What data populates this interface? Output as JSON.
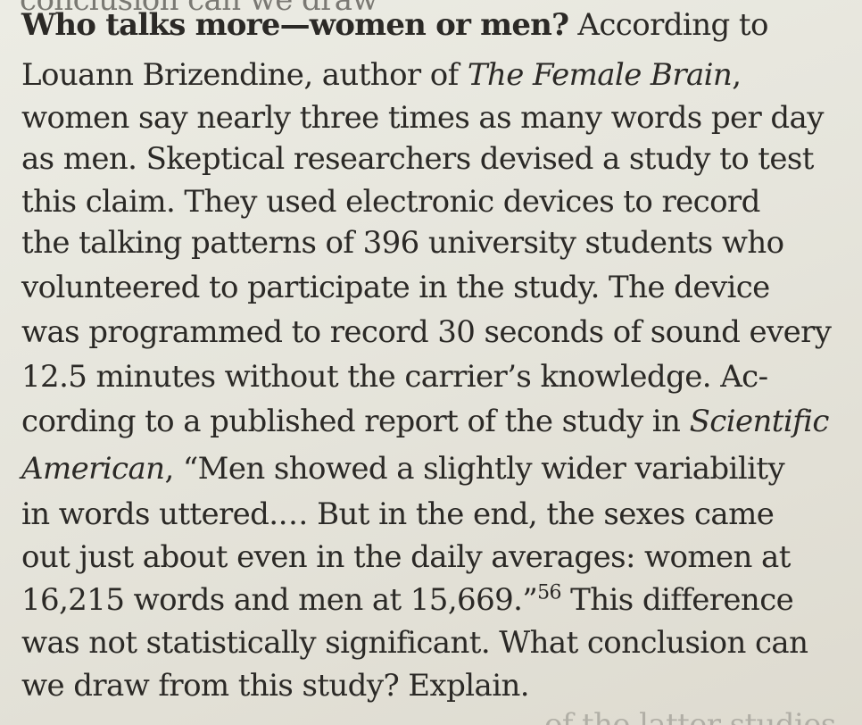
{
  "page": {
    "cut_top_text": "conclusion can we draw",
    "lines": [
      {
        "bold": "Who talks more—women or men?",
        "text": " According to"
      },
      {
        "pre": "Louann Brizendine, author of ",
        "italic": "The Female Brain",
        "post": ","
      },
      {
        "text": "women say nearly three times as many words per day"
      },
      {
        "text": "as men. Skeptical researchers devised a study to test"
      },
      {
        "text": "this claim. They used electronic devices to record"
      },
      {
        "text": "the talking patterns of 396 university students who"
      },
      {
        "text": "volunteered to participate in the study. The device"
      },
      {
        "text": "was programmed to record 30 seconds of sound every"
      },
      {
        "text": "12.5 minutes without the carrier’s knowledge. Ac-"
      },
      {
        "pre": "cording to a published report of the study in ",
        "italic": "Scientific"
      },
      {
        "italic": "American",
        "post": ", “Men showed a slightly wider variability"
      },
      {
        "text": "in words uttered.… But in the end, the sexes came"
      },
      {
        "text": "out just about even in the daily averages: women at"
      },
      {
        "pre": "16,215 words and men at 15,669.”",
        "sup": "56",
        "post": " This difference"
      },
      {
        "text": "was not statistically significant. What conclusion can"
      },
      {
        "text": "we draw from this study? Explain."
      }
    ],
    "cut_bottom_text": "of the latter studies"
  }
}
